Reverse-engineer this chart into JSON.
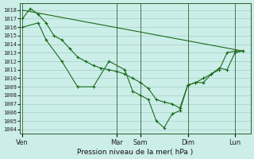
{
  "background_color": "#cceee8",
  "grid_color": "#aad4cc",
  "line_color": "#1a6b1a",
  "marker_color": "#1a6b1a",
  "ylabel_ticks": [
    1004,
    1005,
    1006,
    1007,
    1008,
    1009,
    1010,
    1011,
    1012,
    1013,
    1014,
    1015,
    1016,
    1017,
    1018
  ],
  "ylim": [
    1003.5,
    1018.8
  ],
  "xlabel": "Pression niveau de la mer( hPa )",
  "day_labels": [
    "Ven",
    "Mar",
    "Sam",
    "Dim",
    "Lun"
  ],
  "day_positions": [
    0,
    12,
    15,
    21,
    27
  ],
  "xlim": [
    -0.3,
    29
  ],
  "series": [
    {
      "x": [
        0,
        1,
        2,
        3,
        4,
        5,
        6,
        7,
        8,
        9,
        10,
        11,
        12,
        13,
        14,
        15,
        16,
        17,
        18,
        19,
        20,
        21,
        22,
        23,
        24,
        25,
        26,
        27,
        28
      ],
      "y": [
        1017.0,
        1018.2,
        1017.5,
        1016.5,
        1015.0,
        1014.5,
        1013.5,
        1012.5,
        1012.0,
        1011.5,
        1011.2,
        1011.0,
        1010.8,
        1010.5,
        1010.0,
        1009.5,
        1008.8,
        1007.5,
        1007.2,
        1007.0,
        1006.5,
        1009.2,
        1009.5,
        1010.0,
        1010.5,
        1011.0,
        1013.0,
        1013.2,
        1013.2
      ],
      "has_markers": true
    },
    {
      "x": [
        0,
        2,
        3,
        5,
        7,
        9,
        11,
        13,
        14,
        15,
        16,
        17,
        18,
        19,
        20,
        21,
        22,
        23,
        24,
        25,
        26,
        27,
        28
      ],
      "y": [
        1016.0,
        1016.5,
        1014.5,
        1012.0,
        1009.0,
        1009.0,
        1012.0,
        1011.0,
        1008.5,
        1008.0,
        1007.5,
        1005.0,
        1004.2,
        1005.8,
        1006.2,
        1009.2,
        1009.5,
        1009.5,
        1010.5,
        1011.2,
        1011.0,
        1013.0,
        1013.2
      ],
      "has_markers": true
    },
    {
      "x": [
        0,
        28
      ],
      "y": [
        1018.0,
        1013.2
      ],
      "has_markers": false
    }
  ]
}
